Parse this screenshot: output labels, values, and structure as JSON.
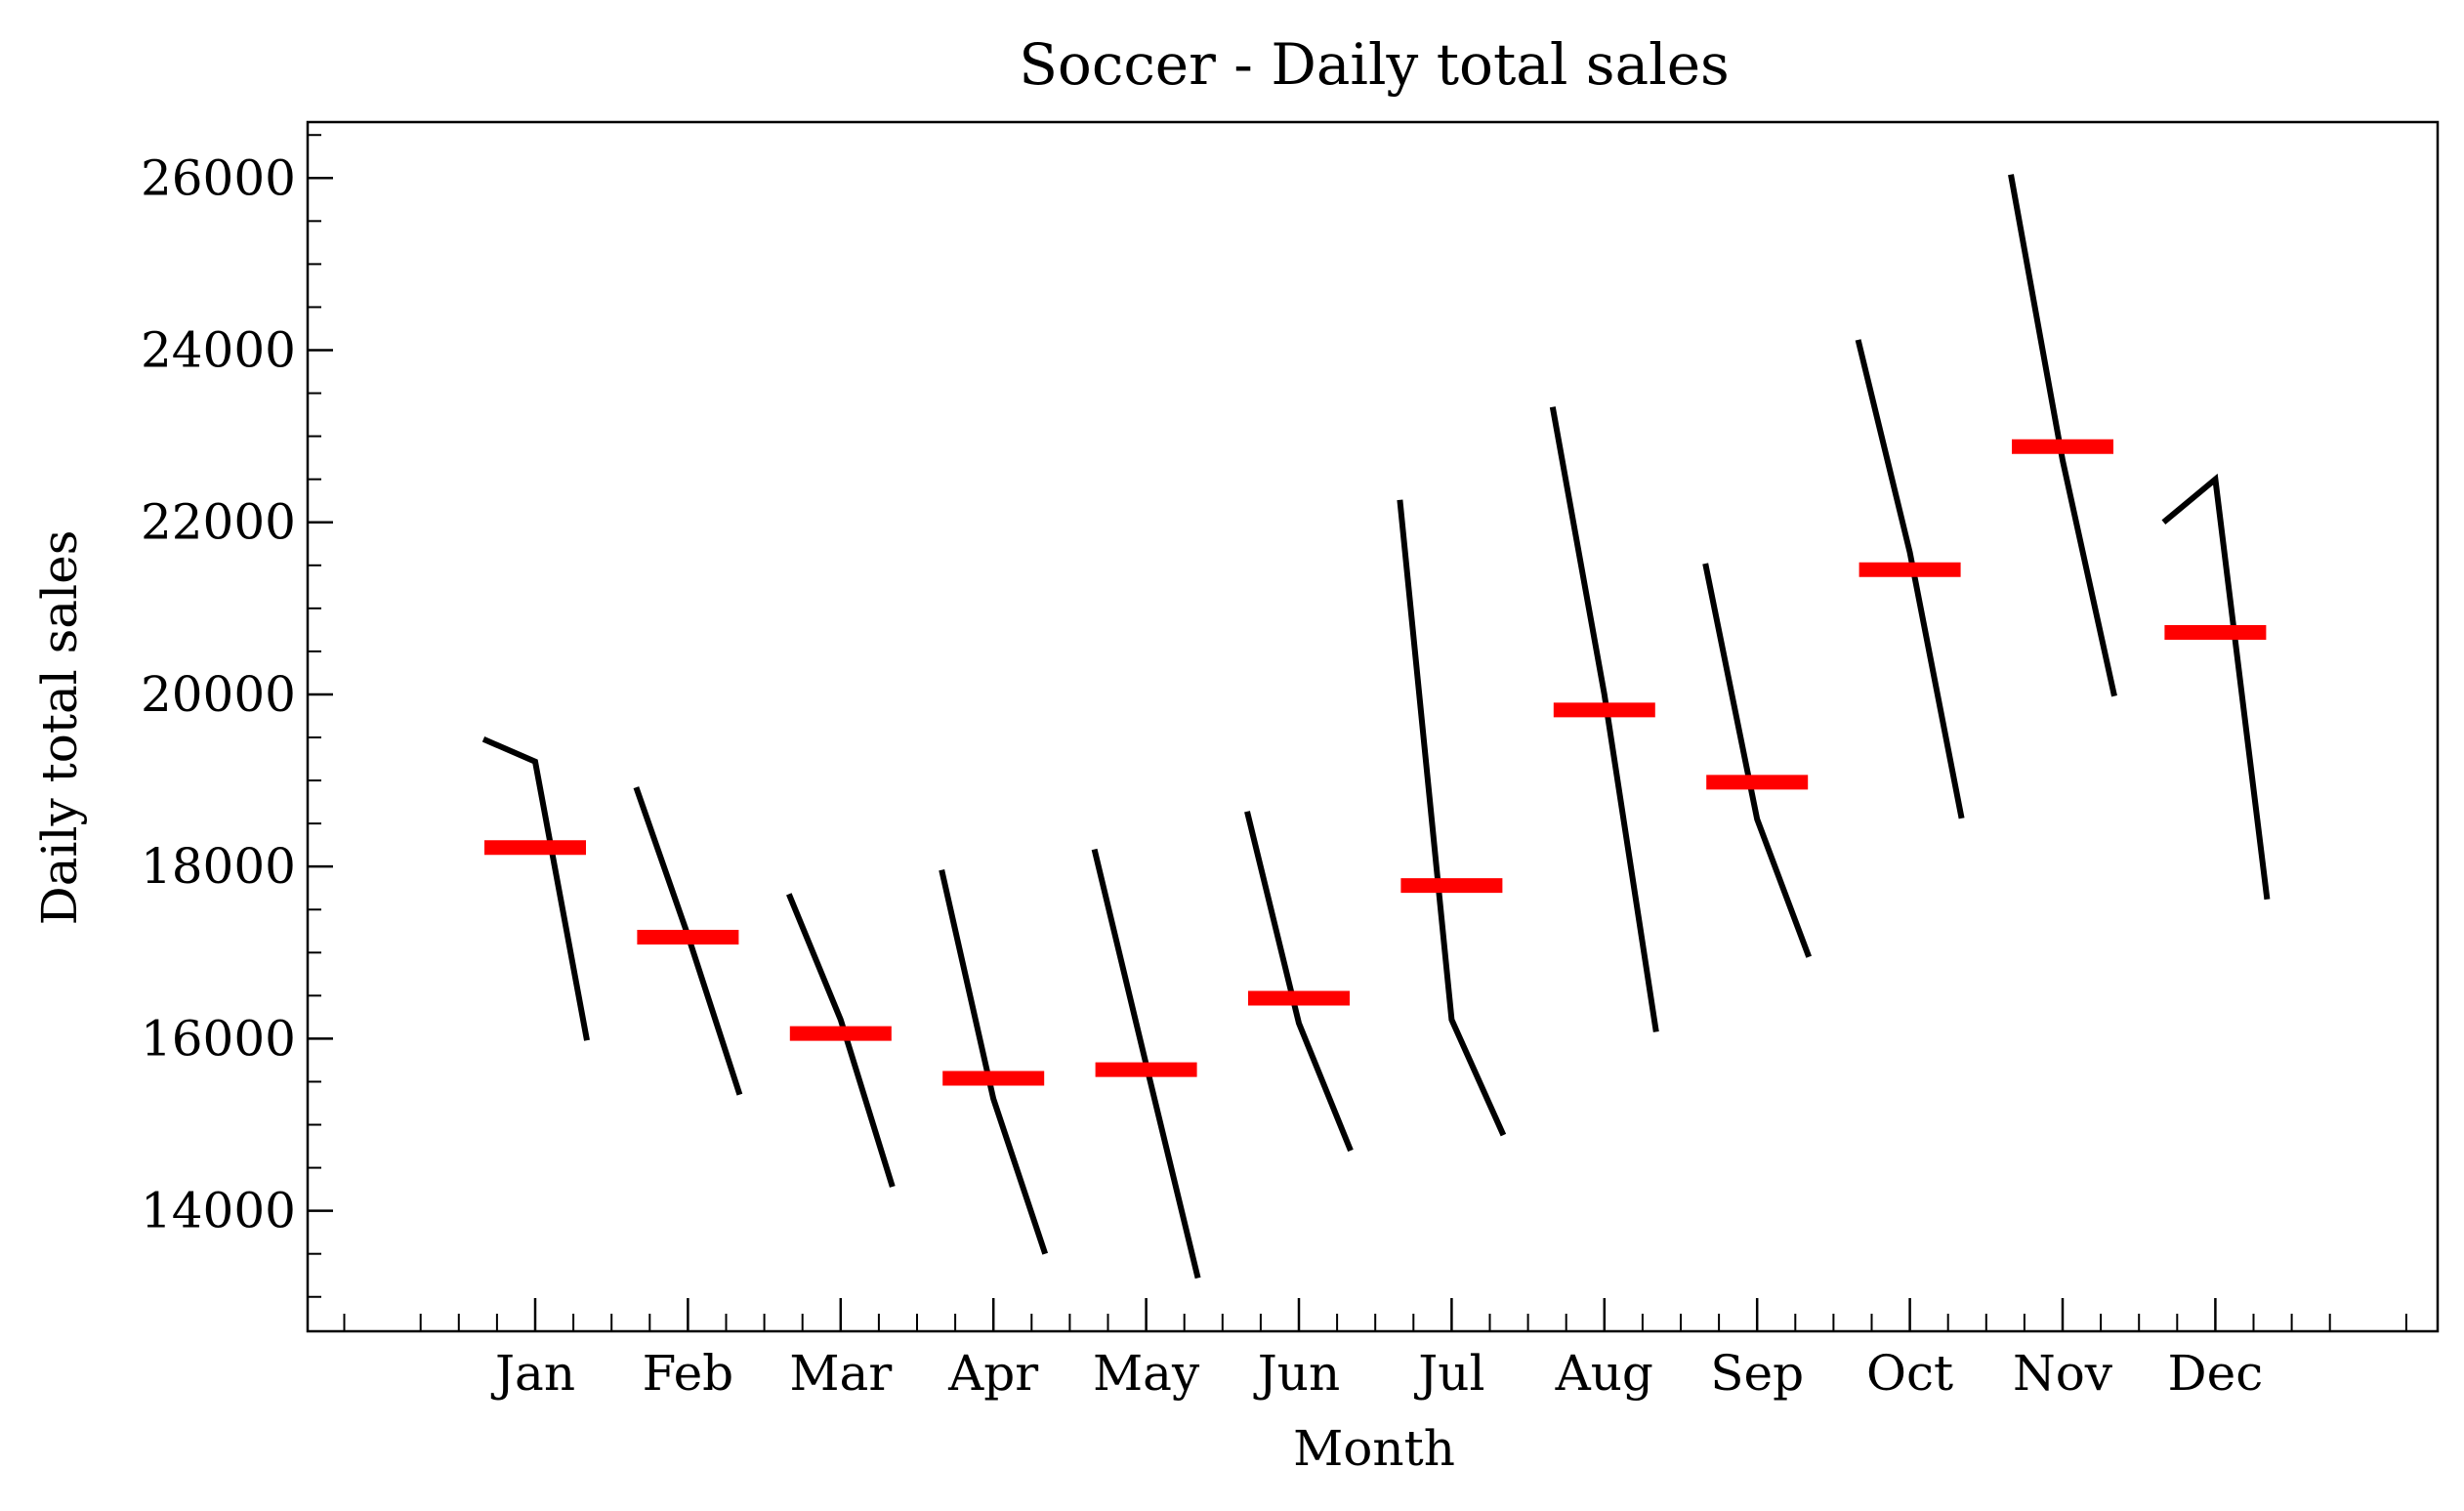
{
  "chart_data": {
    "type": "line",
    "title": "Soccer - Daily total sales",
    "xlabel": "Month",
    "ylabel": "Daily total sales",
    "categories": [
      "Jan",
      "Feb",
      "Mar",
      "Apr",
      "May",
      "Jun",
      "Jul",
      "Aug",
      "Sep",
      "Oct",
      "Nov",
      "Dec"
    ],
    "ylim": [
      12600,
      26650
    ],
    "yticks": [
      14000,
      16000,
      18000,
      20000,
      22000,
      24000,
      26000
    ],
    "ytick_labels": [
      "14000",
      "16000",
      "18000",
      "20000",
      "22000",
      "24000",
      "26000"
    ],
    "series": [
      {
        "values": [
          [
            19480,
            19220,
            15980
          ],
          [
            18920,
            17200,
            15350
          ],
          [
            17680,
            16220,
            14280
          ],
          [
            17960,
            15300,
            13500
          ],
          [
            18200,
            15700,
            13220
          ],
          [
            18640,
            16180,
            14700
          ],
          [
            22260,
            16220,
            14880
          ],
          [
            23340,
            20000,
            16080
          ],
          [
            21520,
            18550,
            16950
          ],
          [
            24120,
            21650,
            18560
          ],
          [
            26040,
            22720,
            19980
          ],
          [
            22000,
            22500,
            17620
          ]
        ]
      }
    ],
    "means": [
      18220,
      17180,
      16060,
      15540,
      15640,
      16470,
      17780,
      19820,
      18980,
      21450,
      22880,
      20720
    ],
    "line_color": "#000000",
    "mean_color": "#ff0000",
    "grid": false,
    "legend": "none"
  }
}
